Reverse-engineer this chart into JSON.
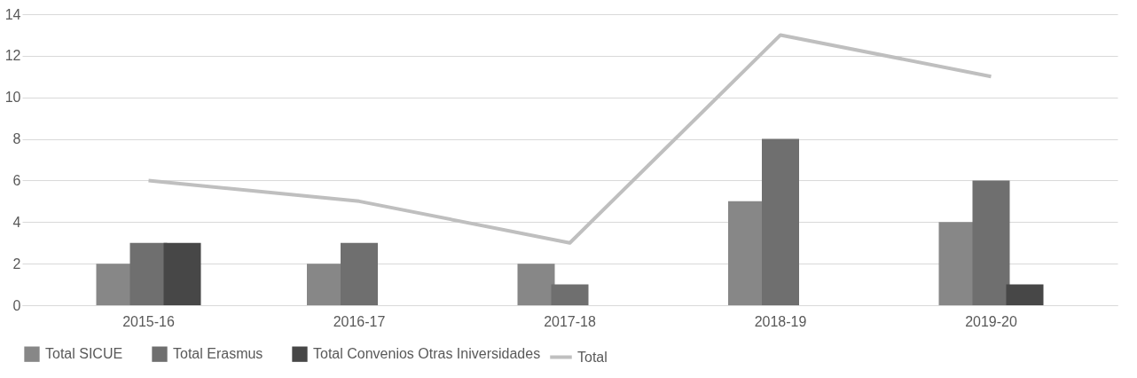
{
  "chart_data": {
    "type": "bar",
    "categories": [
      "2015-16",
      "2016-17",
      "2017-18",
      "2018-19",
      "2019-20"
    ],
    "series": [
      {
        "name": "Total SICUE",
        "color": "#878787",
        "values": [
          2,
          2,
          2,
          5,
          4
        ]
      },
      {
        "name": "Total Erasmus",
        "color": "#6f6f6f",
        "values": [
          3,
          3,
          1,
          8,
          6
        ]
      },
      {
        "name": "Total Convenios Otras Iniversidades",
        "color": "#474747",
        "values": [
          3,
          null,
          null,
          null,
          1
        ]
      },
      {
        "name": "Total",
        "type": "line",
        "color": "#bfbfbf",
        "values": [
          6,
          5,
          3,
          13,
          11
        ]
      }
    ],
    "ylim": [
      0,
      14
    ],
    "yticks": [
      0,
      2,
      4,
      6,
      8,
      10,
      12,
      14
    ],
    "grid": "y",
    "legend": "bottom"
  }
}
